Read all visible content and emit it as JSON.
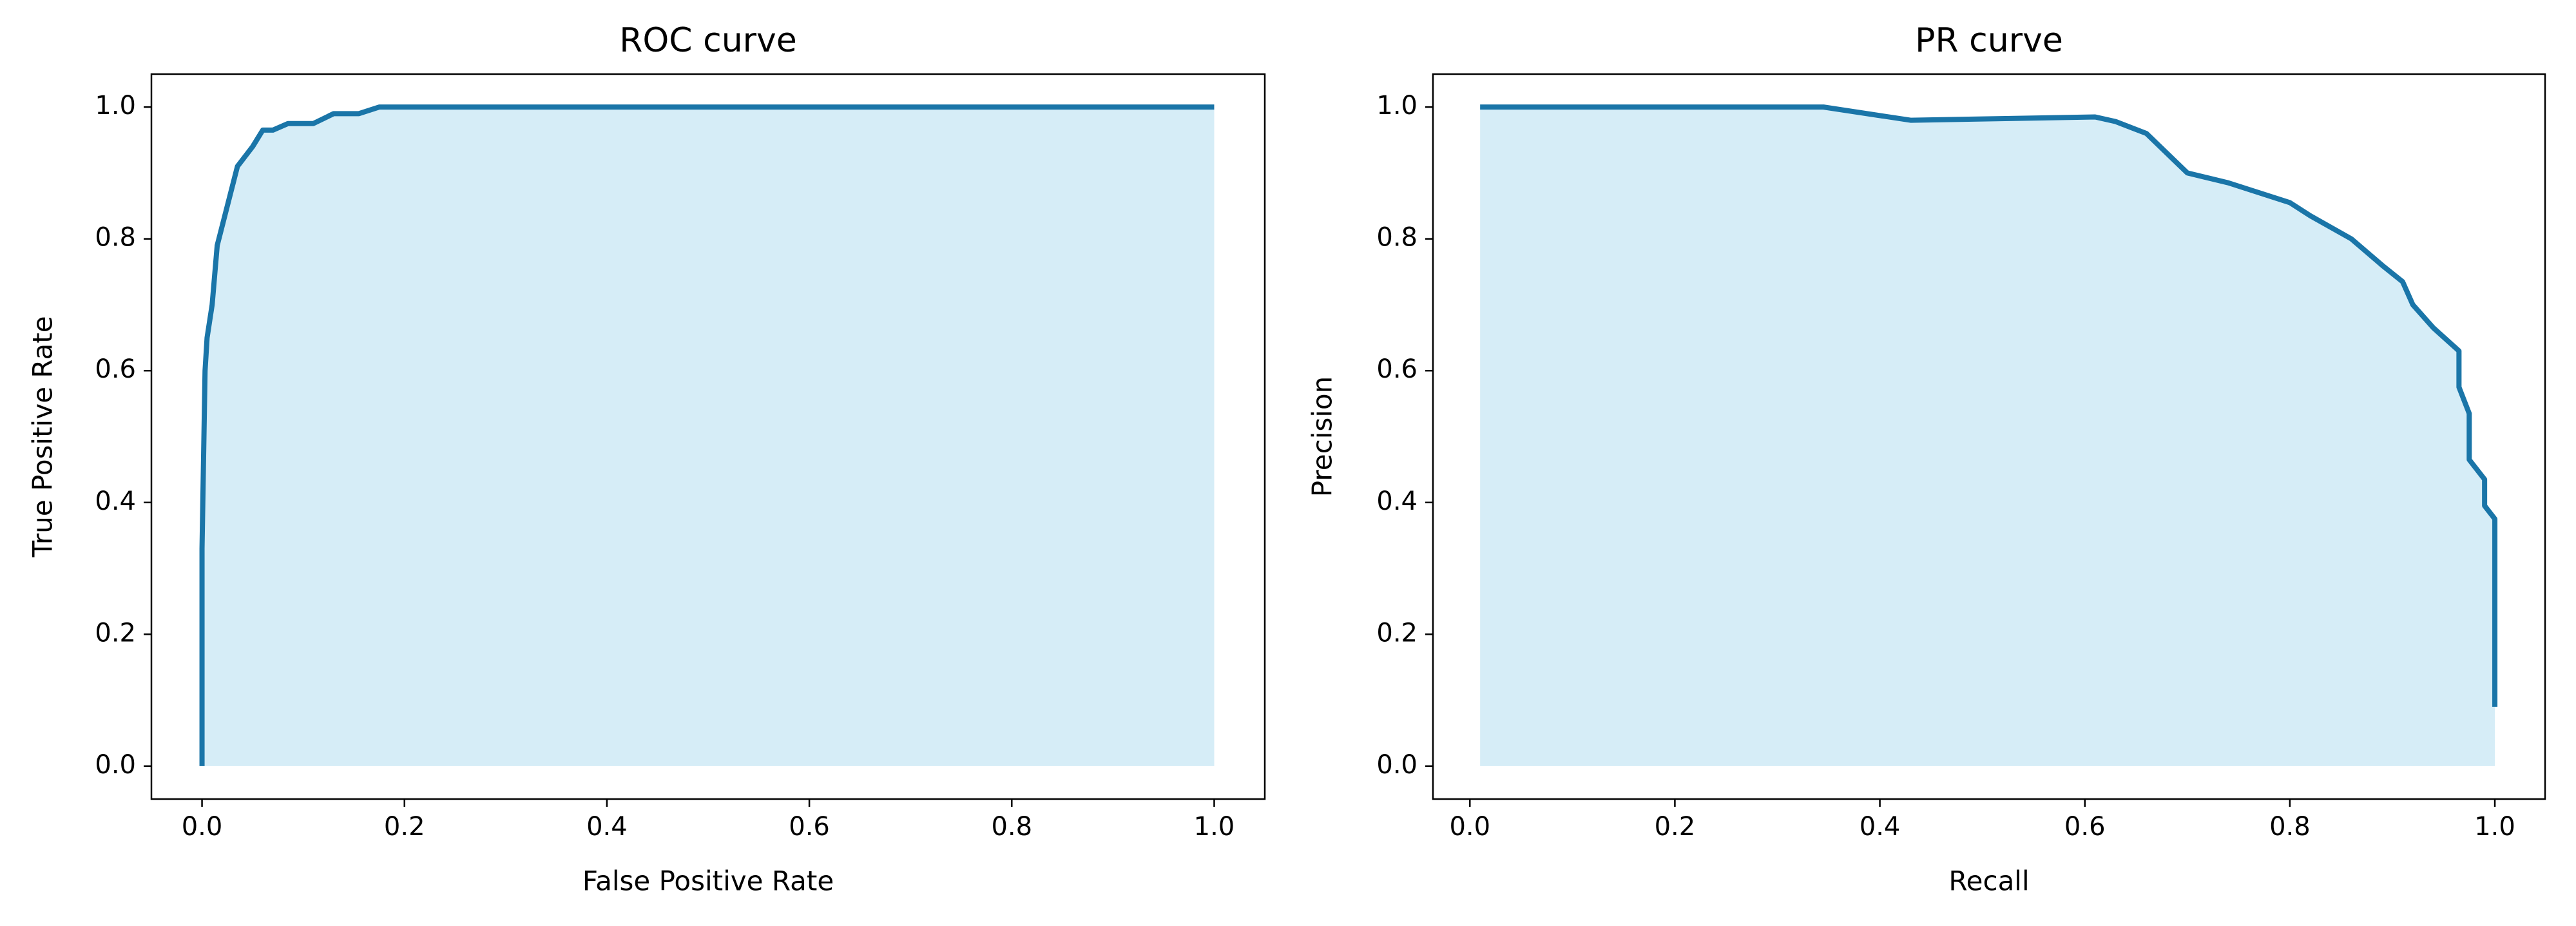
{
  "chart_data": [
    {
      "type": "area",
      "title": "ROC curve",
      "xlabel": "False Positive Rate",
      "ylabel": "True Positive Rate",
      "x": [
        0,
        0,
        0.003,
        0.005,
        0.01,
        0.015,
        0.025,
        0.035,
        0.05,
        0.06,
        0.07,
        0.085,
        0.11,
        0.13,
        0.155,
        0.175,
        1.0
      ],
      "values": [
        0,
        0.33,
        0.6,
        0.65,
        0.7,
        0.79,
        0.85,
        0.91,
        0.94,
        0.965,
        0.965,
        0.975,
        0.975,
        0.99,
        0.99,
        1.0,
        1.0
      ],
      "color": "#1a75a8",
      "fill_color": "#d6edf7",
      "xlim": [
        -0.05,
        1.05
      ],
      "ylim": [
        -0.05,
        1.05
      ],
      "xticks": [
        {
          "value": 0,
          "label": "0.0"
        },
        0.2,
        0.4,
        0.6,
        0.8,
        {
          "value": 1,
          "label": "1.0"
        }
      ],
      "yticks": [
        {
          "value": 0,
          "label": "0.0"
        },
        0.2,
        0.4,
        0.6,
        0.8,
        {
          "value": 1,
          "label": "1.0"
        }
      ]
    },
    {
      "type": "area",
      "title": "PR curve",
      "xlabel": "Recall",
      "ylabel": "Precision",
      "x": [
        0.01,
        0.345,
        0.43,
        0.61,
        0.63,
        0.66,
        0.7,
        0.74,
        0.8,
        0.82,
        0.86,
        0.89,
        0.91,
        0.92,
        0.94,
        0.965,
        0.965,
        0.975,
        0.975,
        0.99,
        0.99,
        1.0,
        1.0
      ],
      "values": [
        1,
        1,
        0.98,
        0.985,
        0.978,
        0.96,
        0.9,
        0.885,
        0.855,
        0.835,
        0.8,
        0.76,
        0.735,
        0.7,
        0.665,
        0.63,
        0.575,
        0.535,
        0.465,
        0.435,
        0.395,
        0.375,
        0.09
      ],
      "color": "#1a75a8",
      "fill_color": "#d6edf7",
      "xlim": [
        -0.036,
        1.049
      ],
      "ylim": [
        -0.05,
        1.05
      ],
      "xticks": [
        {
          "value": 0,
          "label": "0.0"
        },
        0.2,
        0.4,
        0.6,
        0.8,
        {
          "value": 1,
          "label": "1.0"
        }
      ],
      "yticks": [
        {
          "value": 0,
          "label": "0.0"
        },
        0.2,
        0.4,
        0.6,
        0.8,
        {
          "value": 1,
          "label": "1.0"
        }
      ]
    }
  ]
}
